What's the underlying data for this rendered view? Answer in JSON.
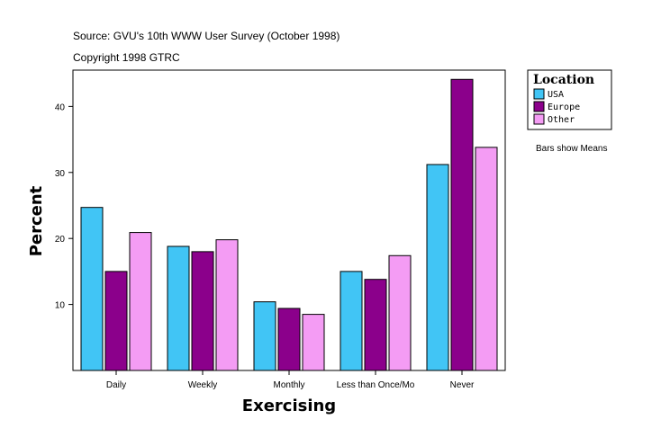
{
  "header": {
    "source": "Source: GVU's 10th WWW User Survey (October 1998)",
    "copyright": "Copyright 1998 GTRC"
  },
  "note": "Bars show Means",
  "colors": {
    "usa": "#41c5f5",
    "europe": "#8b008b",
    "other": "#f49cf4"
  },
  "chart_data": {
    "type": "bar",
    "title": "",
    "xlabel": "Exercising",
    "ylabel": "Percent",
    "categories": [
      "Daily",
      "Weekly",
      "Monthly",
      "Less than Once/Mo",
      "Never"
    ],
    "series": [
      {
        "name": "USA",
        "color": "#41c5f5",
        "values": [
          24.7,
          18.8,
          10.4,
          15.0,
          31.2
        ]
      },
      {
        "name": "Europe",
        "color": "#8b008b",
        "values": [
          15.0,
          18.0,
          9.4,
          13.8,
          44.1
        ]
      },
      {
        "name": "Other",
        "color": "#f49cf4",
        "values": [
          20.9,
          19.8,
          8.5,
          17.4,
          33.8
        ]
      }
    ],
    "yticks": [
      10,
      20,
      30,
      40
    ],
    "ylim": [
      0,
      45.5
    ],
    "legend": {
      "title": "Location",
      "position": "right"
    },
    "grid": false
  }
}
